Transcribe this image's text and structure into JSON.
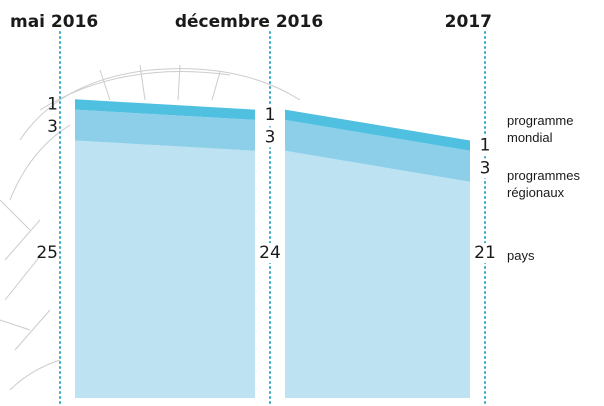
{
  "chart_data": {
    "type": "stacked-area",
    "categories": [
      "mai 2016",
      "décembre 2016",
      "2017"
    ],
    "series": [
      {
        "name": "programme mondial",
        "color": "#4fc0e0",
        "values": [
          1,
          1,
          1
        ]
      },
      {
        "name": "programmes régionaux",
        "color": "#8dcfe9",
        "values": [
          3,
          3,
          3
        ]
      },
      {
        "name": "pays",
        "color": "#bde2f1",
        "values": [
          25,
          24,
          21
        ]
      }
    ]
  }
}
